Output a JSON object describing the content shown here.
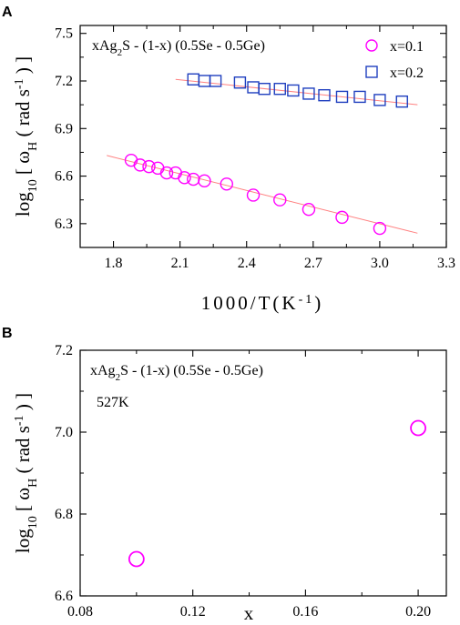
{
  "chart_data": [
    {
      "panel": "A",
      "type": "scatter",
      "xlabel": "1000/T (K⁻¹)",
      "ylabel": "log10[ωH (rad s⁻¹)]",
      "xlim": [
        1.65,
        3.3
      ],
      "ylim": [
        6.15,
        7.55
      ],
      "xticks": [
        "1.8",
        "2.1",
        "2.4",
        "2.7",
        "3.0",
        "3.3"
      ],
      "yticks": [
        "6.3",
        "6.6",
        "6.9",
        "7.2",
        "7.5"
      ],
      "annotation": "xAg₂S - (1-x) (0.5Se - 0.5Ge)",
      "legend_position": "top-right",
      "series": [
        {
          "name": "x=0.1",
          "marker": "circle",
          "color": "#ff00ff",
          "x": [
            1.88,
            1.92,
            1.96,
            2.0,
            2.04,
            2.08,
            2.12,
            2.16,
            2.21,
            2.31,
            2.43,
            2.55,
            2.68,
            2.83,
            3.0
          ],
          "y": [
            6.7,
            6.67,
            6.66,
            6.65,
            6.62,
            6.62,
            6.59,
            6.58,
            6.57,
            6.55,
            6.48,
            6.45,
            6.39,
            6.34,
            6.27
          ],
          "fit": {
            "x": [
              1.77,
              3.17
            ],
            "y": [
              6.73,
              6.24
            ],
            "color": "#ff8080"
          }
        },
        {
          "name": "x=0.2",
          "marker": "square",
          "color": "#1f3fbf",
          "x": [
            2.16,
            2.21,
            2.26,
            2.37,
            2.43,
            2.48,
            2.55,
            2.61,
            2.68,
            2.75,
            2.83,
            2.91,
            3.0,
            3.1
          ],
          "y": [
            7.21,
            7.2,
            7.2,
            7.19,
            7.16,
            7.15,
            7.15,
            7.14,
            7.12,
            7.11,
            7.1,
            7.1,
            7.08,
            7.07
          ],
          "fit": {
            "x": [
              2.08,
              3.17
            ],
            "y": [
              7.21,
              7.05
            ],
            "color": "#ff8080"
          }
        }
      ]
    },
    {
      "panel": "B",
      "type": "scatter",
      "xlabel": "x",
      "ylabel": "log10[ωH (rad s⁻¹)]",
      "xlim": [
        0.08,
        0.21
      ],
      "ylim": [
        6.6,
        7.2
      ],
      "xticks": [
        "0.08",
        "0.12",
        "0.16",
        "0.20"
      ],
      "yticks": [
        "6.6",
        "6.8",
        "7.0",
        "7.2"
      ],
      "annotation": "xAg₂S - (1-x) (0.5Se - 0.5Ge)",
      "annotation2": "527K",
      "series": [
        {
          "name": "",
          "marker": "circle",
          "color": "#ff00ff",
          "x": [
            0.1,
            0.2
          ],
          "y": [
            6.69,
            7.01
          ]
        }
      ]
    }
  ]
}
